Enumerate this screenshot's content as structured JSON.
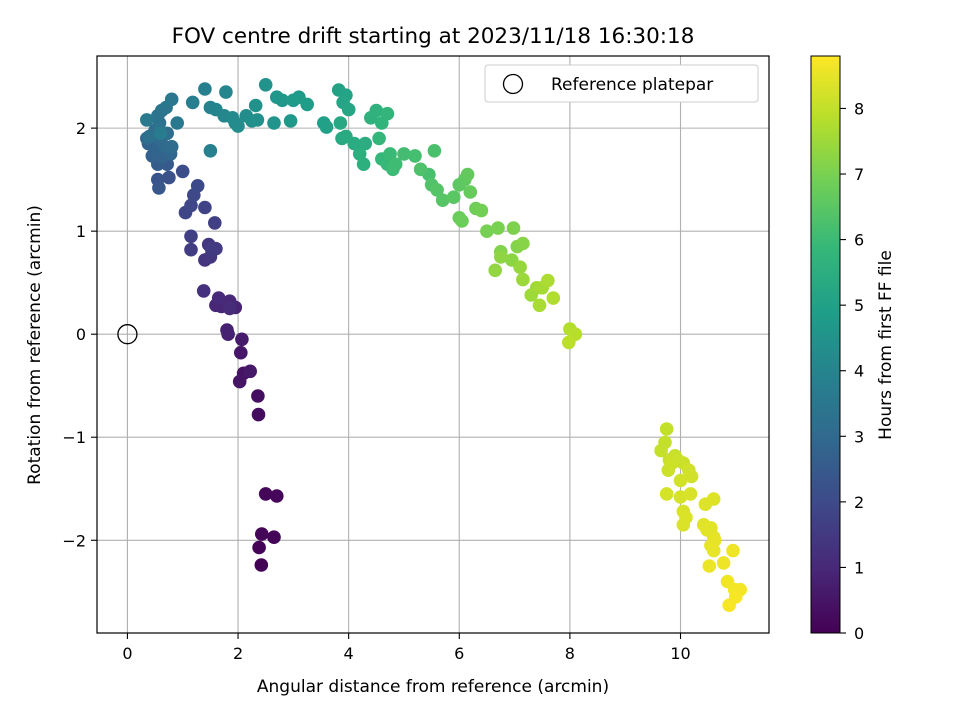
{
  "chart_data": {
    "type": "scatter",
    "title": "FOV centre drift starting at 2023/11/18 16:30:18",
    "xlabel": "Angular distance from reference (arcmin)",
    "ylabel": "Rotation from reference (arcmin)",
    "xlim": [
      -0.55,
      11.6
    ],
    "ylim": [
      -2.9,
      2.7
    ],
    "xticks": [
      0,
      2,
      4,
      6,
      8,
      10
    ],
    "xtick_labels": [
      "0",
      "2",
      "4",
      "6",
      "8",
      "10"
    ],
    "yticks": [
      -2,
      -1,
      0,
      1,
      2
    ],
    "ytick_labels": [
      "−2",
      "−1",
      "0",
      "1",
      "2"
    ],
    "grid": true,
    "legend": {
      "position": "top-right",
      "entries": [
        {
          "label": "Reference platepar",
          "marker": "open-circle"
        }
      ]
    },
    "reference_point": {
      "x": 0,
      "y": 0
    },
    "colorbar": {
      "label": "Hours from first FF file",
      "min": 0,
      "max": 8.8,
      "ticks": [
        0,
        1,
        2,
        3,
        4,
        5,
        6,
        7,
        8
      ],
      "tick_labels": [
        "0",
        "1",
        "2",
        "3",
        "4",
        "5",
        "6",
        "7",
        "8"
      ],
      "colormap": "viridis",
      "colors": [
        "#440154",
        "#482878",
        "#3e4989",
        "#31688e",
        "#26828e",
        "#1f9e89",
        "#35b779",
        "#6ece58",
        "#b5de2b",
        "#fde725"
      ]
    },
    "series": [
      {
        "points": [
          [
            2.42,
            -2.24,
            0.02
          ],
          [
            2.38,
            -2.07,
            0.05
          ],
          [
            2.65,
            -1.97,
            0.08
          ],
          [
            2.43,
            -1.94,
            0.1
          ],
          [
            2.5,
            -1.55,
            0.12
          ],
          [
            2.7,
            -1.57,
            0.15
          ],
          [
            2.37,
            -0.78,
            0.3
          ],
          [
            2.36,
            -0.6,
            0.35
          ],
          [
            2.1,
            -0.38,
            0.45
          ],
          [
            2.03,
            -0.46,
            0.5
          ],
          [
            2.05,
            -0.18,
            0.55
          ],
          [
            2.22,
            -0.36,
            0.6
          ],
          [
            2.07,
            -0.05,
            0.65
          ],
          [
            1.82,
            0.0,
            0.75
          ],
          [
            1.8,
            0.04,
            0.8
          ],
          [
            1.95,
            0.26,
            0.85
          ],
          [
            1.7,
            0.27,
            0.9
          ],
          [
            1.6,
            0.28,
            0.95
          ],
          [
            1.85,
            0.32,
            1.0
          ],
          [
            1.65,
            0.35,
            1.05
          ],
          [
            1.85,
            0.25,
            1.1
          ],
          [
            1.38,
            0.42,
            1.25
          ],
          [
            1.4,
            0.72,
            1.35
          ],
          [
            1.5,
            0.75,
            1.4
          ],
          [
            1.47,
            0.87,
            1.45
          ],
          [
            1.6,
            0.83,
            1.5
          ],
          [
            1.52,
            0.83,
            1.55
          ],
          [
            1.15,
            0.82,
            1.6
          ],
          [
            1.15,
            0.95,
            1.65
          ],
          [
            1.58,
            1.08,
            1.7
          ],
          [
            1.4,
            1.23,
            1.8
          ],
          [
            1.05,
            1.18,
            1.85
          ],
          [
            1.15,
            1.25,
            1.9
          ],
          [
            1.2,
            1.35,
            1.95
          ],
          [
            1.27,
            1.44,
            2.0
          ],
          [
            1.0,
            1.58,
            2.1
          ],
          [
            0.75,
            1.52,
            2.2
          ],
          [
            0.55,
            1.5,
            2.3
          ],
          [
            0.57,
            1.42,
            2.4
          ],
          [
            0.72,
            1.65,
            2.5
          ],
          [
            0.55,
            1.65,
            2.6
          ],
          [
            0.45,
            1.73,
            2.7
          ],
          [
            0.38,
            1.85,
            2.75
          ],
          [
            0.62,
            1.72,
            2.8
          ],
          [
            0.52,
            1.78,
            2.85
          ],
          [
            0.78,
            1.75,
            2.9
          ],
          [
            0.35,
            1.9,
            2.95
          ],
          [
            0.6,
            1.88,
            3.0
          ],
          [
            0.68,
            1.82,
            3.05
          ],
          [
            0.8,
            1.82,
            3.1
          ],
          [
            0.5,
            1.98,
            3.15
          ],
          [
            0.72,
            1.95,
            3.2
          ],
          [
            0.4,
            1.92,
            3.25
          ],
          [
            0.58,
            2.05,
            3.3
          ],
          [
            0.55,
            2.12,
            3.35
          ],
          [
            0.62,
            2.17,
            3.4
          ],
          [
            0.7,
            2.2,
            3.45
          ],
          [
            0.8,
            2.28,
            3.5
          ],
          [
            0.9,
            2.05,
            3.55
          ],
          [
            0.35,
            2.08,
            3.6
          ],
          [
            0.6,
            1.95,
            3.65
          ],
          [
            1.18,
            2.25,
            3.75
          ],
          [
            1.4,
            2.38,
            3.8
          ],
          [
            1.5,
            1.78,
            3.85
          ],
          [
            1.5,
            2.2,
            3.95
          ],
          [
            1.6,
            2.18,
            4.0
          ],
          [
            1.78,
            2.35,
            4.05
          ],
          [
            1.75,
            2.12,
            4.1
          ],
          [
            1.9,
            2.1,
            4.15
          ],
          [
            1.95,
            2.05,
            4.2
          ],
          [
            2.0,
            2.02,
            4.25
          ],
          [
            2.15,
            2.12,
            4.3
          ],
          [
            2.25,
            2.07,
            4.35
          ],
          [
            2.35,
            2.08,
            4.4
          ],
          [
            2.32,
            2.22,
            4.45
          ],
          [
            2.5,
            2.42,
            4.5
          ],
          [
            2.65,
            2.05,
            4.55
          ],
          [
            2.7,
            2.3,
            4.6
          ],
          [
            2.8,
            2.27,
            4.65
          ],
          [
            2.95,
            2.07,
            4.7
          ],
          [
            3.0,
            2.27,
            4.75
          ],
          [
            3.1,
            2.3,
            4.8
          ],
          [
            3.25,
            2.23,
            4.85
          ],
          [
            3.55,
            2.05,
            4.95
          ],
          [
            3.6,
            2.01,
            5.0
          ],
          [
            3.82,
            2.37,
            5.05
          ],
          [
            3.95,
            2.32,
            5.1
          ],
          [
            3.9,
            2.25,
            5.15
          ],
          [
            4.0,
            2.18,
            5.2
          ],
          [
            3.85,
            2.05,
            5.25
          ],
          [
            3.88,
            1.9,
            5.3
          ],
          [
            3.95,
            1.92,
            5.35
          ],
          [
            4.1,
            1.85,
            5.4
          ],
          [
            4.3,
            1.85,
            5.45
          ],
          [
            4.2,
            1.75,
            5.5
          ],
          [
            4.27,
            1.65,
            5.55
          ],
          [
            4.4,
            2.1,
            5.6
          ],
          [
            4.5,
            2.17,
            5.65
          ],
          [
            4.6,
            2.05,
            5.7
          ],
          [
            4.7,
            2.14,
            5.75
          ],
          [
            4.55,
            1.9,
            5.8
          ],
          [
            4.6,
            1.7,
            5.85
          ],
          [
            4.7,
            1.65,
            5.9
          ],
          [
            4.75,
            1.75,
            5.95
          ],
          [
            4.8,
            1.6,
            6.0
          ],
          [
            4.85,
            1.65,
            6.05
          ],
          [
            5.0,
            1.75,
            6.1
          ],
          [
            5.2,
            1.73,
            6.15
          ],
          [
            5.45,
            1.55,
            6.2
          ],
          [
            5.55,
            1.78,
            6.25
          ],
          [
            5.3,
            1.6,
            6.3
          ],
          [
            5.5,
            1.45,
            6.35
          ],
          [
            5.6,
            1.4,
            6.4
          ],
          [
            5.7,
            1.3,
            6.45
          ],
          [
            5.9,
            1.33,
            6.5
          ],
          [
            6.0,
            1.45,
            6.55
          ],
          [
            6.1,
            1.5,
            6.6
          ],
          [
            6.15,
            1.55,
            6.65
          ],
          [
            6.2,
            1.38,
            6.7
          ],
          [
            6.0,
            1.13,
            6.75
          ],
          [
            6.05,
            1.1,
            6.8
          ],
          [
            6.3,
            1.22,
            6.85
          ],
          [
            6.4,
            1.2,
            6.9
          ],
          [
            6.5,
            1.0,
            6.95
          ],
          [
            6.7,
            1.03,
            7.0
          ],
          [
            6.98,
            1.03,
            7.05
          ],
          [
            6.75,
            0.8,
            7.1
          ],
          [
            7.05,
            0.85,
            7.15
          ],
          [
            7.15,
            0.88,
            7.2
          ],
          [
            6.95,
            0.72,
            7.25
          ],
          [
            6.75,
            0.75,
            7.3
          ],
          [
            6.65,
            0.62,
            7.35
          ],
          [
            7.1,
            0.65,
            7.4
          ],
          [
            7.15,
            0.53,
            7.45
          ],
          [
            7.3,
            0.38,
            7.5
          ],
          [
            7.4,
            0.45,
            7.55
          ],
          [
            7.5,
            0.45,
            7.6
          ],
          [
            7.45,
            0.28,
            7.65
          ],
          [
            7.6,
            0.52,
            7.7
          ],
          [
            7.7,
            0.35,
            7.75
          ],
          [
            8.0,
            0.05,
            7.8
          ],
          [
            8.1,
            0.0,
            7.85
          ],
          [
            7.98,
            -0.08,
            7.9
          ],
          [
            9.75,
            -0.92,
            8.0
          ],
          [
            9.65,
            -1.13,
            8.02
          ],
          [
            9.72,
            -1.05,
            8.04
          ],
          [
            9.8,
            -1.22,
            8.06
          ],
          [
            9.9,
            -1.18,
            8.08
          ],
          [
            9.95,
            -1.22,
            8.1
          ],
          [
            10.05,
            -1.25,
            8.12
          ],
          [
            9.78,
            -1.32,
            8.14
          ],
          [
            9.85,
            -1.25,
            8.16
          ],
          [
            10.15,
            -1.32,
            8.18
          ],
          [
            10.2,
            -1.38,
            8.2
          ],
          [
            10.0,
            -1.42,
            8.22
          ],
          [
            9.75,
            -1.55,
            8.24
          ],
          [
            10.0,
            -1.58,
            8.26
          ],
          [
            10.18,
            -1.55,
            8.28
          ],
          [
            10.05,
            -1.72,
            8.3
          ],
          [
            10.1,
            -1.78,
            8.32
          ],
          [
            10.05,
            -1.85,
            8.34
          ],
          [
            10.45,
            -1.65,
            8.36
          ],
          [
            10.6,
            -1.6,
            8.38
          ],
          [
            10.42,
            -1.85,
            8.4
          ],
          [
            10.48,
            -1.9,
            8.42
          ],
          [
            10.55,
            -1.88,
            8.44
          ],
          [
            10.6,
            -1.97,
            8.46
          ],
          [
            10.55,
            -2.05,
            8.48
          ],
          [
            10.62,
            -2.0,
            8.5
          ],
          [
            10.6,
            -2.1,
            8.52
          ],
          [
            10.52,
            -2.25,
            8.55
          ],
          [
            10.78,
            -2.22,
            8.58
          ],
          [
            10.95,
            -2.1,
            8.6
          ],
          [
            10.85,
            -2.4,
            8.63
          ],
          [
            10.98,
            -2.48,
            8.65
          ],
          [
            11.08,
            -2.48,
            8.68
          ],
          [
            11.0,
            -2.55,
            8.7
          ],
          [
            10.88,
            -2.63,
            8.72
          ]
        ]
      }
    ]
  }
}
